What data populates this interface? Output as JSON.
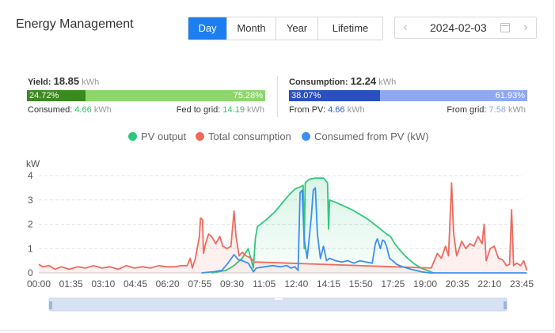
{
  "header": {
    "title": "Energy Management"
  },
  "tabs": [
    {
      "label": "Day",
      "active": true
    },
    {
      "label": "Month",
      "active": false
    },
    {
      "label": "Year",
      "active": false
    },
    {
      "label": "Lifetime",
      "active": false
    }
  ],
  "date_picker": {
    "value": "2024-02-03",
    "prev_icon": "chevron-left-icon",
    "next_icon": "chevron-right-icon",
    "calendar_icon": "calendar-icon"
  },
  "yield": {
    "label": "Yield:",
    "value": "18.85",
    "unit": "kWh",
    "consumed_pct": 24.72,
    "fed_pct": 75.28,
    "consumed_pct_label": "24.72%",
    "fed_pct_label": "75.28%",
    "consumed_label": "Consumed:",
    "consumed_value": "4.66",
    "fed_label": "Fed to grid:",
    "fed_value": "14.19"
  },
  "consumption": {
    "label": "Consumption:",
    "value": "12.24",
    "unit": "kWh",
    "pv_pct": 38.07,
    "grid_pct": 61.93,
    "pv_pct_label": "38.07%",
    "grid_pct_label": "61.93%",
    "from_pv_label": "From PV:",
    "from_pv_value": "4.66",
    "from_grid_label": "From grid:",
    "from_grid_value": "7.58"
  },
  "colors": {
    "accent": "#1d7ef0",
    "pv": "#2ec87b",
    "total": "#ee6a5e",
    "consumed_pv": "#3d8ef0",
    "yield_dark": "#3a8a1f",
    "yield_light": "#8dd66b",
    "cons_dark": "#2a4fbf",
    "cons_light": "#8fa8f0"
  },
  "chart_data": {
    "type": "line",
    "ylabel": "kW",
    "ylim": [
      0,
      4
    ],
    "yticks": [
      "0",
      "1",
      "2",
      "3",
      "4"
    ],
    "xticks": [
      "00:00",
      "01:35",
      "03:10",
      "04:45",
      "06:20",
      "07:55",
      "09:30",
      "11:05",
      "12:40",
      "14:15",
      "15:50",
      "17:25",
      "19:00",
      "20:35",
      "22:10",
      "23:45"
    ],
    "series": [
      {
        "name": "PV output",
        "points": [
          [
            8.5,
            0
          ],
          [
            9.2,
            0.1
          ],
          [
            9.6,
            0.3
          ],
          [
            10.0,
            0.6
          ],
          [
            10.3,
            1.0
          ],
          [
            10.55,
            0.2
          ],
          [
            10.65,
            1.4
          ],
          [
            10.75,
            1.9
          ],
          [
            11.2,
            2.2
          ],
          [
            11.6,
            2.5
          ],
          [
            12.0,
            2.9
          ],
          [
            12.3,
            3.2
          ],
          [
            12.6,
            3.45
          ],
          [
            12.9,
            3.55
          ],
          [
            13.0,
            3.6
          ],
          [
            13.05,
            1.0
          ],
          [
            13.1,
            3.7
          ],
          [
            13.3,
            3.85
          ],
          [
            13.6,
            3.9
          ],
          [
            14.0,
            3.9
          ],
          [
            14.2,
            3.7
          ],
          [
            14.25,
            1.8
          ],
          [
            14.3,
            3.0
          ],
          [
            14.6,
            2.9
          ],
          [
            15.0,
            2.75
          ],
          [
            15.4,
            2.6
          ],
          [
            15.8,
            2.4
          ],
          [
            16.2,
            2.2
          ],
          [
            16.5,
            2.0
          ],
          [
            16.8,
            1.8
          ],
          [
            17.1,
            1.6
          ],
          [
            17.3,
            1.5
          ],
          [
            17.5,
            1.2
          ],
          [
            17.7,
            1.0
          ],
          [
            17.9,
            0.8
          ],
          [
            18.2,
            0.55
          ],
          [
            18.5,
            0.35
          ],
          [
            18.8,
            0.2
          ],
          [
            19.1,
            0.1
          ],
          [
            19.4,
            0
          ]
        ]
      },
      {
        "name": "Total consumption",
        "points": [
          [
            0,
            0.35
          ],
          [
            0.2,
            0.25
          ],
          [
            0.5,
            0.3
          ],
          [
            0.8,
            0.15
          ],
          [
            1.1,
            0.25
          ],
          [
            1.5,
            0.15
          ],
          [
            1.9,
            0.25
          ],
          [
            2.3,
            0.2
          ],
          [
            2.7,
            0.3
          ],
          [
            3.1,
            0.2
          ],
          [
            3.5,
            0.25
          ],
          [
            3.9,
            0.15
          ],
          [
            4.3,
            0.3
          ],
          [
            4.7,
            0.2
          ],
          [
            5.1,
            0.25
          ],
          [
            5.5,
            0.2
          ],
          [
            5.9,
            0.3
          ],
          [
            6.3,
            0.25
          ],
          [
            6.7,
            0.25
          ],
          [
            7.0,
            0.3
          ],
          [
            7.3,
            0.3
          ],
          [
            7.45,
            0.6
          ],
          [
            7.55,
            0.2
          ],
          [
            7.7,
            0.6
          ],
          [
            7.9,
            1.5
          ],
          [
            7.95,
            2.25
          ],
          [
            8.05,
            2.2
          ],
          [
            8.1,
            0.8
          ],
          [
            8.2,
            1.2
          ],
          [
            8.35,
            1.6
          ],
          [
            8.5,
            1.5
          ],
          [
            8.7,
            1.2
          ],
          [
            8.9,
            1.5
          ],
          [
            9.05,
            1.1
          ],
          [
            9.25,
            1.0
          ],
          [
            9.45,
            1.1
          ],
          [
            9.6,
            2.55
          ],
          [
            9.7,
            1.5
          ],
          [
            9.85,
            0.7
          ],
          [
            10.0,
            0.85
          ],
          [
            10.2,
            0.7
          ],
          [
            10.45,
            0.6
          ],
          [
            10.6,
            0.45
          ],
          [
            19.3,
            0.2
          ],
          [
            19.6,
            0.8
          ],
          [
            19.8,
            0.6
          ],
          [
            20.0,
            1.1
          ],
          [
            20.15,
            0.7
          ],
          [
            20.3,
            3.7
          ],
          [
            20.4,
            1.6
          ],
          [
            20.55,
            0.7
          ],
          [
            20.8,
            1.3
          ],
          [
            21.0,
            1.0
          ],
          [
            21.2,
            1.2
          ],
          [
            21.4,
            1.1
          ],
          [
            21.6,
            1.5
          ],
          [
            21.8,
            1.2
          ],
          [
            21.9,
            2.0
          ],
          [
            22.0,
            0.5
          ],
          [
            22.2,
            1.0
          ],
          [
            22.4,
            1.1
          ],
          [
            22.6,
            0.6
          ],
          [
            22.8,
            0.55
          ],
          [
            23.0,
            0.3
          ],
          [
            23.15,
            0.35
          ],
          [
            23.25,
            2.6
          ],
          [
            23.35,
            0.3
          ],
          [
            23.5,
            0.4
          ],
          [
            23.7,
            0.3
          ],
          [
            23.85,
            0.5
          ],
          [
            24.0,
            0.1
          ]
        ]
      },
      {
        "name": "Consumed from PV (kW)",
        "points": [
          [
            8.0,
            0
          ],
          [
            8.6,
            0.05
          ],
          [
            9.0,
            0.1
          ],
          [
            9.3,
            0.4
          ],
          [
            9.6,
            0.75
          ],
          [
            9.8,
            0.55
          ],
          [
            10.0,
            0.5
          ],
          [
            10.3,
            0.4
          ],
          [
            10.45,
            0.2
          ],
          [
            10.55,
            0.05
          ],
          [
            10.7,
            0.2
          ],
          [
            11.1,
            0.25
          ],
          [
            11.5,
            0.3
          ],
          [
            11.9,
            0.25
          ],
          [
            12.2,
            0.3
          ],
          [
            12.4,
            0.2
          ],
          [
            12.6,
            0.25
          ],
          [
            12.75,
            0.1
          ],
          [
            12.85,
            3.3
          ],
          [
            12.95,
            3.4
          ],
          [
            13.05,
            1.4
          ],
          [
            13.2,
            0.6
          ],
          [
            13.4,
            2.3
          ],
          [
            13.5,
            3.4
          ],
          [
            13.6,
            3.5
          ],
          [
            13.7,
            1.6
          ],
          [
            13.85,
            0.6
          ],
          [
            14.0,
            1.1
          ],
          [
            14.15,
            0.5
          ],
          [
            14.3,
            0.6
          ],
          [
            14.6,
            0.5
          ],
          [
            14.9,
            0.45
          ],
          [
            15.2,
            0.5
          ],
          [
            15.5,
            0.4
          ],
          [
            15.8,
            0.5
          ],
          [
            16.1,
            0.45
          ],
          [
            16.4,
            0.4
          ],
          [
            16.55,
            1.2
          ],
          [
            16.65,
            1.4
          ],
          [
            16.8,
            1.0
          ],
          [
            16.9,
            1.35
          ],
          [
            17.0,
            1.3
          ],
          [
            17.1,
            1.1
          ],
          [
            17.25,
            0.6
          ],
          [
            17.4,
            0.5
          ],
          [
            17.6,
            0.35
          ],
          [
            17.9,
            0.25
          ],
          [
            18.3,
            0.15
          ],
          [
            18.8,
            0.05
          ],
          [
            19.2,
            0
          ],
          [
            24.0,
            0
          ]
        ]
      }
    ]
  }
}
